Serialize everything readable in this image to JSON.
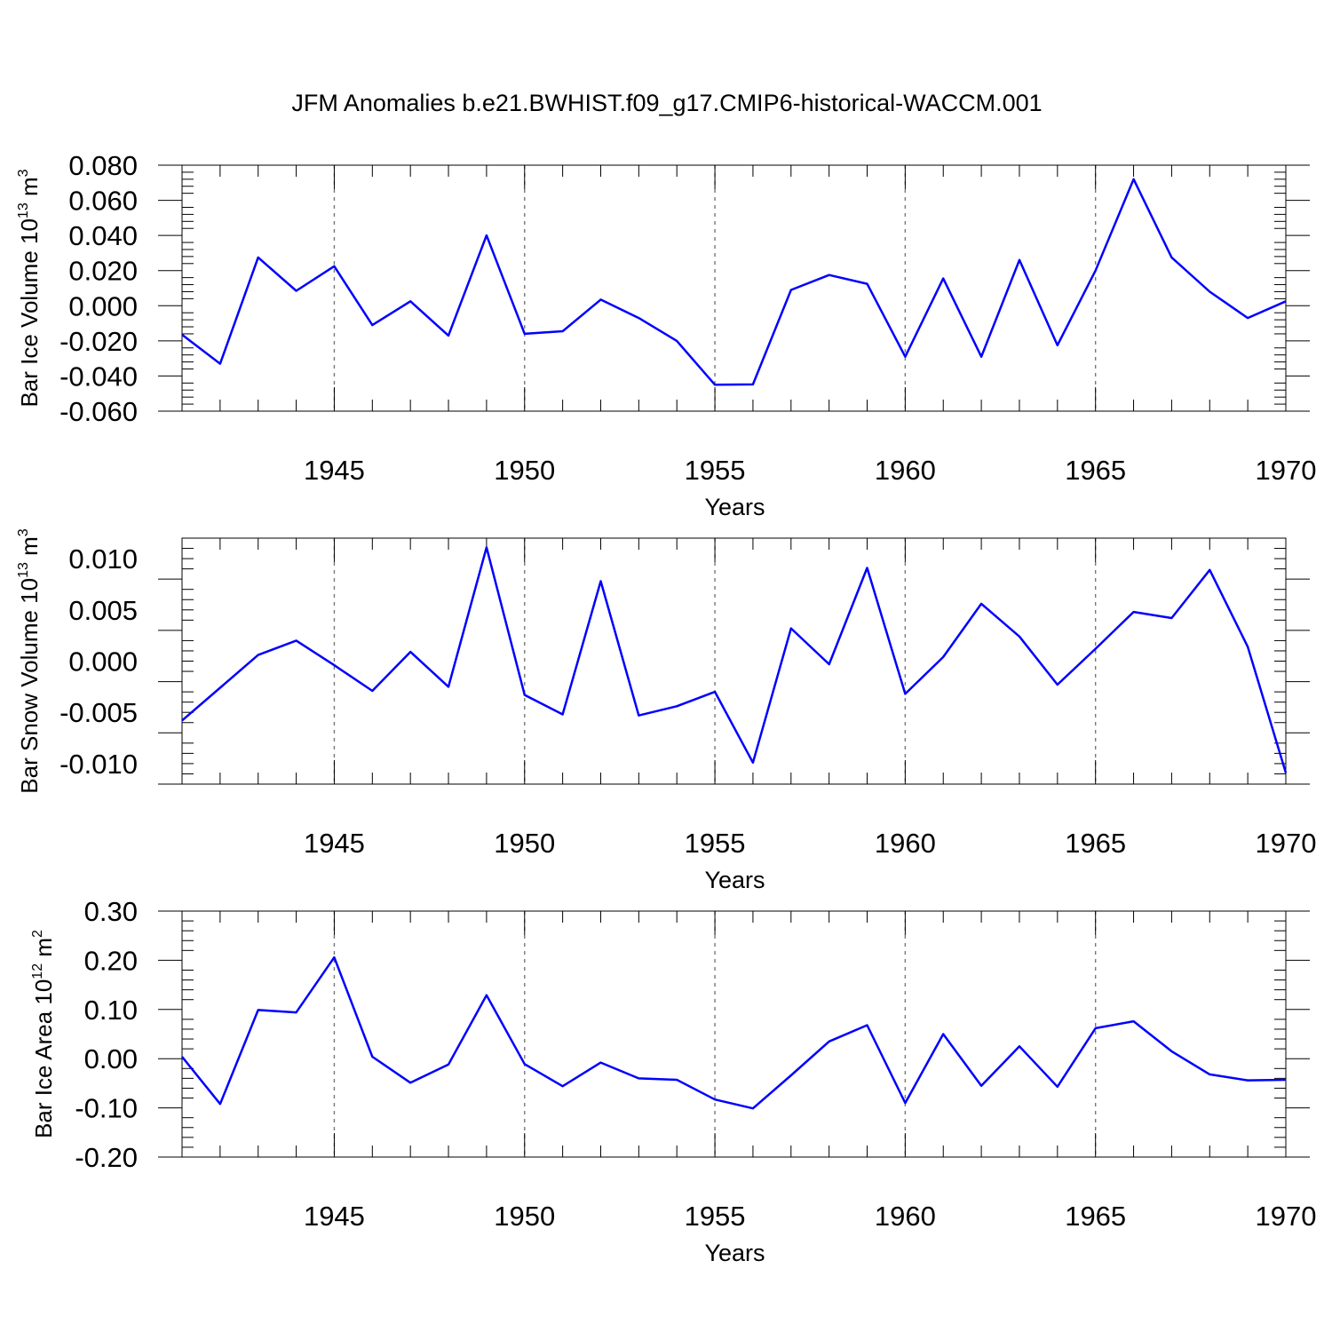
{
  "title": "JFM Anomalies b.e21.BWHIST.f09_g17.CMIP6-historical-WACCM.001",
  "colors": {
    "series": "#0000ff",
    "grid": "#777777",
    "axes": "#000000"
  },
  "chart_data": [
    {
      "type": "line",
      "ylabel": {
        "main": "Bar Ice Volume 10",
        "sup1": "13",
        "mid": " m",
        "sup2": "3"
      },
      "xlabel": "Years",
      "xlim": [
        1941,
        1970
      ],
      "ylim": [
        -0.06,
        0.08
      ],
      "yticks": [
        -0.06,
        -0.04,
        -0.02,
        0.0,
        0.02,
        0.04,
        0.06,
        0.08
      ],
      "ytick_labels": [
        "-0.060",
        "-0.040",
        "-0.020",
        "0.000",
        "0.020",
        "0.040",
        "0.060",
        "0.080"
      ],
      "xticks": [
        1945,
        1950,
        1955,
        1960,
        1965,
        1970
      ],
      "xtick_labels": [
        "1945",
        "1950",
        "1955",
        "1960",
        "1965",
        "1970"
      ],
      "grid": "vertical dashed at labeled years",
      "x": [
        1941,
        1942,
        1943,
        1944,
        1945,
        1946,
        1947,
        1948,
        1949,
        1950,
        1951,
        1952,
        1953,
        1954,
        1955,
        1956,
        1957,
        1958,
        1959,
        1960,
        1961,
        1962,
        1963,
        1964,
        1965,
        1966,
        1967,
        1968,
        1969,
        1970
      ],
      "series": [
        {
          "values": [
            -0.0165,
            -0.033,
            0.0275,
            0.0085,
            0.0225,
            -0.011,
            0.0025,
            -0.017,
            0.04,
            -0.016,
            -0.0145,
            0.0035,
            -0.007,
            -0.02,
            -0.045,
            -0.0448,
            0.009,
            0.0175,
            0.0125,
            -0.029,
            0.0155,
            -0.029,
            0.026,
            -0.0225,
            0.02,
            0.072,
            0.0275,
            0.008,
            -0.007,
            0.0025
          ]
        }
      ]
    },
    {
      "type": "line",
      "ylabel": {
        "main": "Bar Snow Volume 10",
        "sup1": "13",
        "mid": " m",
        "sup2": "3"
      },
      "xlabel": "Years",
      "xlim": [
        1941,
        1970
      ],
      "ylim": [
        -0.012,
        0.012
      ],
      "yticks": [
        -0.01,
        -0.005,
        0.0,
        0.005,
        0.01
      ],
      "ytick_labels": [
        "-0.010",
        "-0.005",
        "0.000",
        "0.005",
        "0.010"
      ],
      "xticks": [
        1945,
        1950,
        1955,
        1960,
        1965,
        1970
      ],
      "xtick_labels": [
        "1945",
        "1950",
        "1955",
        "1960",
        "1965",
        "1970"
      ],
      "grid": "vertical dashed at labeled years",
      "x": [
        1941,
        1942,
        1943,
        1944,
        1945,
        1946,
        1947,
        1948,
        1949,
        1950,
        1951,
        1952,
        1953,
        1954,
        1955,
        1956,
        1957,
        1958,
        1959,
        1960,
        1961,
        1962,
        1963,
        1964,
        1965,
        1966,
        1967,
        1968,
        1969,
        1970
      ],
      "series": [
        {
          "values": [
            -0.0058,
            -0.0026,
            0.0006,
            0.002,
            -0.0004,
            -0.0029,
            0.0009,
            -0.0025,
            0.0111,
            -0.0033,
            -0.0052,
            0.0078,
            -0.0053,
            -0.0044,
            -0.003,
            -0.0099,
            0.0032,
            -0.0003,
            0.0091,
            -0.0032,
            0.0004,
            0.0056,
            0.0024,
            -0.0023,
            0.0012,
            0.0048,
            0.0042,
            0.0089,
            0.0014,
            -0.0109
          ]
        }
      ]
    },
    {
      "type": "line",
      "ylabel": {
        "main": "Bar Ice Area 10",
        "sup1": "12",
        "mid": " m",
        "sup2": "2"
      },
      "xlabel": "Years",
      "xlim": [
        1941,
        1970
      ],
      "ylim": [
        -0.2,
        0.3
      ],
      "yticks": [
        -0.2,
        -0.1,
        0.0,
        0.1,
        0.2,
        0.3
      ],
      "ytick_labels": [
        "-0.20",
        "-0.10",
        "0.00",
        "0.10",
        "0.20",
        "0.30"
      ],
      "xticks": [
        1945,
        1950,
        1955,
        1960,
        1965,
        1970
      ],
      "xtick_labels": [
        "1945",
        "1950",
        "1955",
        "1960",
        "1965",
        "1970"
      ],
      "grid": "vertical dashed at labeled years",
      "x": [
        1941,
        1942,
        1943,
        1944,
        1945,
        1946,
        1947,
        1948,
        1949,
        1950,
        1951,
        1952,
        1953,
        1954,
        1955,
        1956,
        1957,
        1958,
        1959,
        1960,
        1961,
        1962,
        1963,
        1964,
        1965,
        1966,
        1967,
        1968,
        1969,
        1970
      ],
      "series": [
        {
          "values": [
            0.004,
            -0.092,
            0.099,
            0.094,
            0.206,
            0.004,
            -0.049,
            -0.012,
            0.129,
            -0.011,
            -0.056,
            -0.008,
            -0.04,
            -0.043,
            -0.083,
            -0.101,
            -0.034,
            0.035,
            0.068,
            -0.09,
            0.05,
            -0.055,
            0.025,
            -0.057,
            0.062,
            0.076,
            0.015,
            -0.032,
            -0.044,
            -0.043
          ]
        }
      ]
    }
  ]
}
